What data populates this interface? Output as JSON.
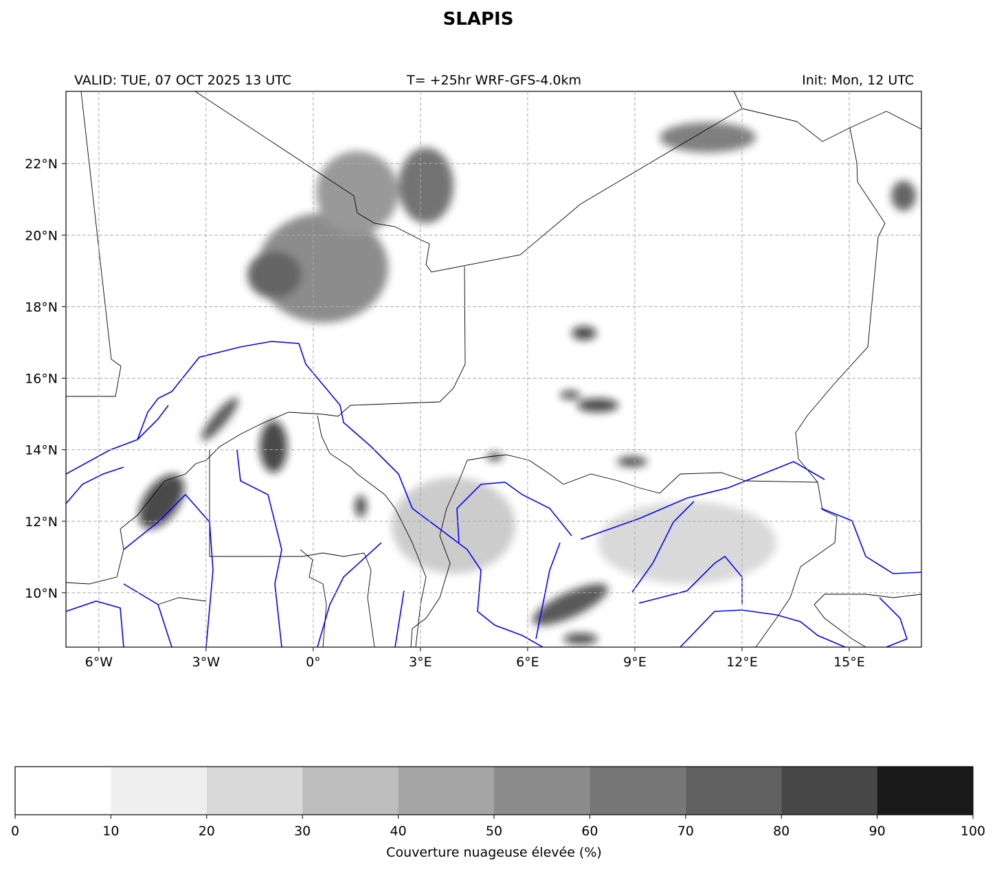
{
  "title": "SLAPIS",
  "header": {
    "valid": "VALID: TUE, 07 OCT 2025 13 UTC",
    "run": "T= +25hr WRF-GFS-4.0km",
    "init": "Init: Mon, 12 UTC"
  },
  "map": {
    "lonlim": [
      -6.92,
      17.02
    ],
    "latlim": [
      8.48,
      24.02
    ],
    "grid": true,
    "lonticks": [
      {
        "value": -6,
        "label": "6°W"
      },
      {
        "value": -3,
        "label": "3°W"
      },
      {
        "value": 0,
        "label": "0°"
      },
      {
        "value": 3,
        "label": "3°E"
      },
      {
        "value": 6,
        "label": "6°E"
      },
      {
        "value": 9,
        "label": "9°E"
      },
      {
        "value": 12,
        "label": "12°E"
      },
      {
        "value": 15,
        "label": "15°E"
      }
    ],
    "latticks": [
      {
        "value": 10,
        "label": "10°N"
      },
      {
        "value": 12,
        "label": "12°N"
      },
      {
        "value": 14,
        "label": "14°N"
      },
      {
        "value": 16,
        "label": "16°N"
      },
      {
        "value": 18,
        "label": "18°N"
      },
      {
        "value": 20,
        "label": "20°N"
      },
      {
        "value": 22,
        "label": "22°N"
      }
    ]
  },
  "colorbar": {
    "label": "Couverture nuageuse élevée (%)",
    "bounds": [
      0,
      10,
      20,
      30,
      40,
      50,
      60,
      70,
      80,
      90,
      100
    ],
    "colors": [
      "#ffffff",
      "#efefef",
      "#d9d9d9",
      "#bdbdbd",
      "#a5a5a5",
      "#8c8c8c",
      "#777777",
      "#616161",
      "#474747",
      "#191919"
    ]
  }
}
